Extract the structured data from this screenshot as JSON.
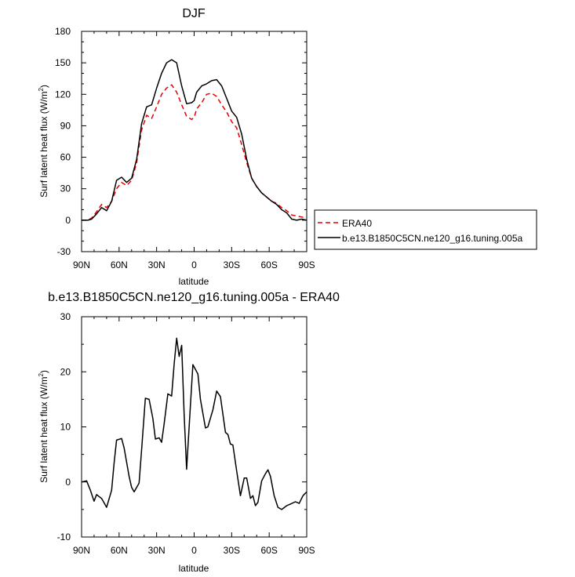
{
  "chart_data": [
    {
      "type": "line",
      "title": "DJF",
      "xlabel": "latitude",
      "ylabel": "Surf latent heat flux (W/m",
      "ylabel_sup": "2",
      "ylabel_close": ")",
      "xlim": [
        90,
        -90
      ],
      "ylim": [
        -30,
        180
      ],
      "x_ticks": [
        {
          "value": 90,
          "label": "90N"
        },
        {
          "value": 60,
          "label": "60N"
        },
        {
          "value": 30,
          "label": "30N"
        },
        {
          "value": 0,
          "label": "0"
        },
        {
          "value": -30,
          "label": "30S"
        },
        {
          "value": -60,
          "label": "60S"
        },
        {
          "value": -90,
          "label": "90S"
        }
      ],
      "y_ticks": [
        -30,
        0,
        30,
        60,
        90,
        120,
        150,
        180
      ],
      "legend": "outside-right",
      "series": [
        {
          "name": "ERA40",
          "color": "#e60000",
          "dash": "dashed",
          "x": [
            90,
            85,
            82,
            78,
            74,
            70,
            66,
            62,
            58,
            54,
            50,
            46,
            42,
            38,
            34,
            30,
            26,
            22,
            18,
            14,
            10,
            6,
            2,
            0,
            -2,
            -6,
            -10,
            -14,
            -18,
            -22,
            -26,
            -30,
            -34,
            -38,
            -42,
            -46,
            -50,
            -54,
            -58,
            -62,
            -66,
            -70,
            -74,
            -78,
            -82,
            -86,
            -90
          ],
          "y": [
            0,
            0,
            2,
            8,
            15,
            12,
            18,
            30,
            36,
            33,
            38,
            55,
            86,
            100,
            97,
            108,
            120,
            126,
            129,
            122,
            110,
            99,
            96,
            98,
            106,
            112,
            120,
            121,
            118,
            110,
            103,
            94,
            88,
            72,
            55,
            40,
            32,
            26,
            22,
            18,
            16,
            12,
            9,
            5,
            4,
            3,
            2
          ]
        },
        {
          "name": "b.e13.B1850C5CN.ne120_g16.tuning.005a",
          "color": "#000000",
          "dash": "solid",
          "x": [
            90,
            85,
            82,
            78,
            74,
            70,
            66,
            62,
            58,
            54,
            50,
            46,
            42,
            38,
            34,
            30,
            26,
            22,
            18,
            14,
            10,
            6,
            2,
            0,
            -2,
            -6,
            -10,
            -14,
            -18,
            -22,
            -26,
            -30,
            -34,
            -38,
            -42,
            -46,
            -50,
            -54,
            -58,
            -62,
            -66,
            -70,
            -74,
            -78,
            -82,
            -86,
            -90
          ],
          "y": [
            0,
            0,
            1,
            6,
            12,
            9,
            18,
            38,
            41,
            36,
            40,
            58,
            92,
            108,
            110,
            126,
            140,
            150,
            153,
            150,
            128,
            111,
            112,
            114,
            122,
            128,
            130,
            133,
            134,
            128,
            116,
            104,
            98,
            82,
            58,
            40,
            32,
            26,
            22,
            18,
            15,
            10,
            7,
            1,
            0,
            1,
            0
          ]
        }
      ]
    },
    {
      "type": "line",
      "title": "b.e13.B1850C5CN.ne120_g16.tuning.005a - ERA40",
      "xlabel": "latitude",
      "ylabel": "Surf latent heat flux (W/m",
      "ylabel_sup": "2",
      "ylabel_close": ")",
      "xlim": [
        90,
        -90
      ],
      "ylim": [
        -10,
        30
      ],
      "x_ticks": [
        {
          "value": 90,
          "label": "90N"
        },
        {
          "value": 60,
          "label": "60N"
        },
        {
          "value": 30,
          "label": "30N"
        },
        {
          "value": 0,
          "label": "0"
        },
        {
          "value": -30,
          "label": "30S"
        },
        {
          "value": -60,
          "label": "60S"
        },
        {
          "value": -90,
          "label": "90S"
        }
      ],
      "y_ticks": [
        -10,
        0,
        10,
        20,
        30
      ],
      "series": [
        {
          "color": "#000000",
          "dash": "solid",
          "x": [
            90,
            86,
            83,
            80,
            78,
            74,
            72,
            70,
            66,
            64,
            62,
            58,
            56,
            52,
            50,
            48,
            44,
            42,
            39,
            36,
            33,
            31,
            28,
            26,
            24,
            21,
            18,
            16,
            14,
            12,
            10,
            8,
            6,
            3,
            1,
            -3,
            -5,
            -9,
            -11,
            -15,
            -18,
            -21,
            -25,
            -27,
            -29,
            -31,
            -34,
            -37,
            -40,
            -42,
            -45,
            -47,
            -49,
            -51,
            -54,
            -57,
            -59,
            -61,
            -64,
            -67,
            -70,
            -74,
            -77,
            -81,
            -84,
            -87,
            -90
          ],
          "y": [
            0,
            0.2,
            -1.5,
            -3.5,
            -2.3,
            -3.0,
            -3.8,
            -4.6,
            -1.5,
            3.5,
            7.6,
            7.9,
            6.2,
            1.0,
            -1.0,
            -1.8,
            -0.2,
            5.8,
            15.2,
            15.0,
            11.5,
            7.8,
            8.0,
            7.2,
            10.5,
            16.0,
            15.6,
            21.4,
            26.1,
            22.8,
            24.8,
            12.4,
            2.3,
            13.8,
            21.3,
            19.6,
            15.0,
            9.8,
            10.0,
            13.1,
            16.5,
            15.5,
            9.0,
            8.6,
            6.9,
            6.7,
            2.0,
            -2.5,
            0.7,
            0.7,
            -3.0,
            -2.5,
            -4.3,
            -3.7,
            0.2,
            1.5,
            2.2,
            1.0,
            -2.5,
            -4.6,
            -5.0,
            -4.3,
            -4.0,
            -3.6,
            -3.9,
            -2.5,
            -1.8
          ]
        }
      ]
    }
  ]
}
